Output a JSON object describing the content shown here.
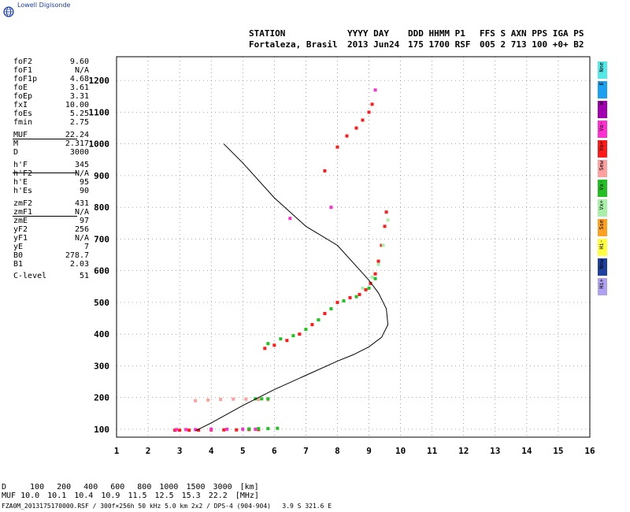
{
  "brand": {
    "name": "Lowell Digisonde"
  },
  "header": {
    "line1": [
      "STATION",
      "YYYY DAY",
      "DDD HHMM P1",
      "FFS S AXN PPS IGA PS"
    ],
    "line2": [
      "Fortaleza, Brasil",
      "2013 Jun24",
      "175 1700 RSF",
      "005 2 713 100 +0+ B2"
    ]
  },
  "params": {
    "group1": [
      {
        "key": "foF2",
        "value": "9.60"
      },
      {
        "key": "foF1",
        "value": "N/A"
      },
      {
        "key": "foF1p",
        "value": "4.68"
      },
      {
        "key": "foE",
        "value": "3.61"
      },
      {
        "key": "foEp",
        "value": "3.31"
      },
      {
        "key": "fxI",
        "value": "10.00"
      },
      {
        "key": "foEs",
        "value": "5.25"
      },
      {
        "key": "fmin",
        "value": "2.75"
      }
    ],
    "group2": [
      {
        "key": "MUF",
        "value": "22.24"
      },
      {
        "key": "M",
        "value": "2.317"
      },
      {
        "key": "D",
        "value": "3000"
      }
    ],
    "group3": [
      {
        "key": "h'F",
        "value": "345"
      },
      {
        "key": "h'F2",
        "value": "N/A"
      },
      {
        "key": "h'E",
        "value": "95"
      },
      {
        "key": "h'Es",
        "value": "90"
      }
    ],
    "group4": [
      {
        "key": "zmF2",
        "value": "431"
      },
      {
        "key": "zmF1",
        "value": "N/A"
      },
      {
        "key": "zmE",
        "value": "97"
      },
      {
        "key": "yF2",
        "value": "256"
      },
      {
        "key": "yF1",
        "value": "N/A"
      },
      {
        "key": "yE",
        "value": "7"
      },
      {
        "key": "B0",
        "value": "278.7"
      },
      {
        "key": "B1",
        "value": "2.03"
      },
      {
        "key": "C-level",
        "value": "51"
      }
    ]
  },
  "legend": [
    {
      "label": "Nne",
      "color": "#55e8e8"
    },
    {
      "label": "E",
      "color": "#1aa0f0"
    },
    {
      "label": "W",
      "color": "#a000b0"
    },
    {
      "label": "Vo-",
      "color": "#ff2fd0"
    },
    {
      "label": "Vo+",
      "color": "#ff1a1a"
    },
    {
      "label": "Sew",
      "color": "#ff9f9f"
    },
    {
      "label": "Vx-",
      "color": "#22c022"
    },
    {
      "label": "Vx+",
      "color": "#a8f0a8"
    },
    {
      "label": "Sse",
      "color": "#ffa020"
    },
    {
      "label": "Hi-",
      "color": "#ffff40"
    },
    {
      "label": "Nnw",
      "color": "#2040a0"
    },
    {
      "label": "Hi+",
      "color": "#b0a0f0"
    }
  ],
  "footer": {
    "d_label": "D",
    "d_values": [
      "100",
      "200",
      "400",
      "600",
      "800",
      "1000",
      "1500",
      "3000"
    ],
    "d_unit": "[km]",
    "muf_label": "MUF",
    "muf_values": [
      "10.0",
      "10.1",
      "10.4",
      "10.9",
      "11.5",
      "12.5",
      "15.3",
      "22.2"
    ],
    "muf_unit": "[MHz]",
    "fileline": "FZA0M_2013175170000.RSF / 300f×256h 50 kHz 5.0 km 2x2 / DPS-4 (904-904)   3.9 S 321.6 E"
  },
  "chart_data": {
    "type": "scatter",
    "xlim": [
      1,
      16
    ],
    "ylim": [
      75,
      1275
    ],
    "x_ticks": [
      1,
      2,
      3,
      4,
      5,
      6,
      7,
      8,
      9,
      10,
      11,
      12,
      13,
      14,
      15,
      16
    ],
    "y_ticks": [
      100,
      200,
      300,
      400,
      500,
      600,
      700,
      800,
      900,
      1000,
      1100,
      1200
    ],
    "grid": true,
    "profile": {
      "color": "#000000",
      "x": [
        3.5,
        4.0,
        5.0,
        6.0,
        7.0,
        8.0,
        8.5,
        9.0,
        9.4,
        9.6,
        9.55,
        9.3,
        9.0,
        8.5,
        8.0,
        7.0,
        6.0,
        5.0,
        4.4
      ],
      "y": [
        95,
        120,
        175,
        225,
        270,
        315,
        335,
        360,
        390,
        430,
        480,
        530,
        570,
        625,
        680,
        740,
        830,
        940,
        1000
      ]
    },
    "traces": [
      {
        "name": "E-layer trace",
        "color": "#ff1a1a",
        "x": [
          2.85,
          3.0,
          3.3,
          3.6,
          4.0,
          4.4,
          4.8,
          5.2,
          5.5
        ],
        "y": [
          97,
          97,
          97,
          97,
          98,
          98,
          98,
          99,
          99
        ]
      },
      {
        "name": "E-layer trace pink",
        "color": "#ff2fd0",
        "x": [
          2.9,
          3.2,
          3.5,
          4.0,
          4.5,
          5.0,
          5.4
        ],
        "y": [
          99,
          99,
          99,
          100,
          100,
          100,
          100
        ]
      },
      {
        "name": "E-layer trace green",
        "color": "#22c022",
        "x": [
          5.2,
          5.5,
          5.8,
          6.1
        ],
        "y": [
          101,
          102,
          102,
          103
        ]
      },
      {
        "name": "Es 2nd hop",
        "color": "#ff9f9f",
        "x": [
          3.5,
          3.9,
          4.3,
          4.7,
          5.1,
          5.5,
          5.8
        ],
        "y": [
          190,
          192,
          194,
          195,
          195,
          194,
          193
        ]
      },
      {
        "name": "Es 2nd hop green",
        "color": "#22c022",
        "x": [
          5.4,
          5.6,
          5.8
        ],
        "y": [
          196,
          196,
          196
        ]
      },
      {
        "name": "F-layer ordinary",
        "color": "#ff1a1a",
        "x": [
          5.7,
          6.0,
          6.4,
          6.8,
          7.2,
          7.6,
          8.0,
          8.4,
          8.7,
          8.9,
          9.05,
          9.2,
          9.3,
          9.4,
          9.5,
          9.55
        ],
        "y": [
          355,
          365,
          380,
          400,
          430,
          465,
          500,
          515,
          525,
          540,
          560,
          590,
          630,
          680,
          740,
          785
        ]
      },
      {
        "name": "F-layer green",
        "color": "#22c022",
        "x": [
          5.8,
          6.2,
          6.6,
          7.0,
          7.4,
          7.8,
          8.2,
          8.6,
          9.0,
          9.2
        ],
        "y": [
          370,
          385,
          395,
          415,
          445,
          480,
          505,
          518,
          545,
          575
        ]
      },
      {
        "name": "F-layer extraordinary",
        "color": "#a8f0a8",
        "x": [
          8.8,
          9.1,
          9.3,
          9.45,
          9.6
        ],
        "y": [
          545,
          580,
          620,
          680,
          760
        ]
      },
      {
        "name": "F2 multi-hop",
        "color": "#ff1a1a",
        "x": [
          7.6,
          8.0,
          8.3,
          8.6,
          8.8,
          9.0,
          9.1
        ],
        "y": [
          915,
          990,
          1025,
          1050,
          1075,
          1100,
          1125
        ]
      },
      {
        "name": "misc dots",
        "color": "#ff2fd0",
        "x": [
          6.5,
          7.8,
          9.2
        ],
        "y": [
          765,
          800,
          1170
        ]
      }
    ]
  }
}
